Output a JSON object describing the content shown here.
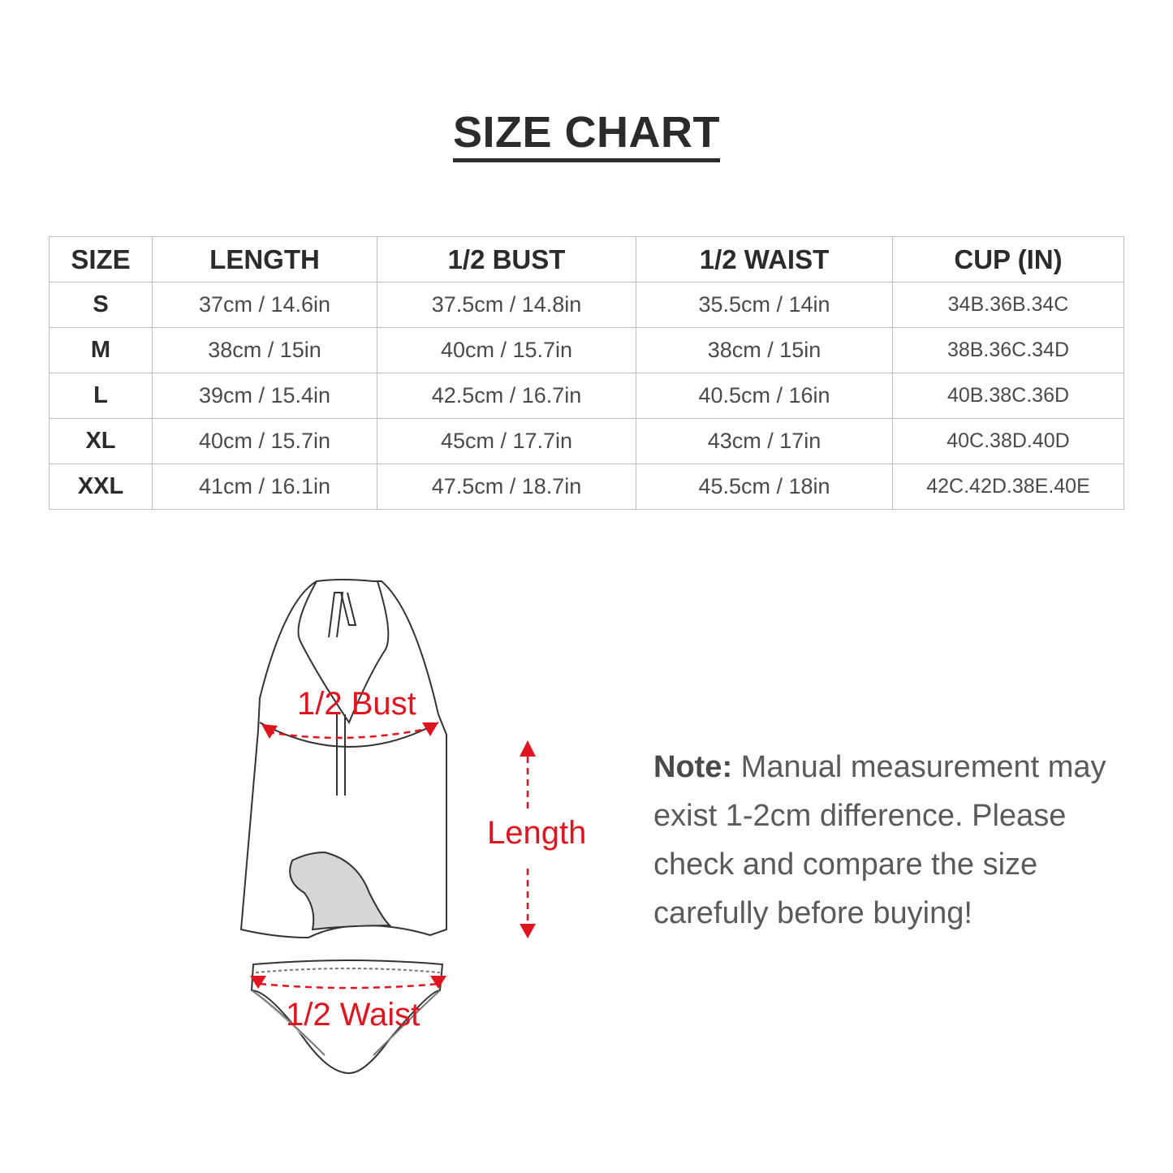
{
  "title": "SIZE CHART",
  "table": {
    "headers": [
      "SIZE",
      "LENGTH",
      "1/2 BUST",
      "1/2 WAIST",
      "CUP (IN)"
    ],
    "rows": [
      [
        "S",
        "37cm / 14.6in",
        "37.5cm / 14.8in",
        "35.5cm / 14in",
        "34B.36B.34C"
      ],
      [
        "M",
        "38cm / 15in",
        "40cm / 15.7in",
        "38cm / 15in",
        "38B.36C.34D"
      ],
      [
        "L",
        "39cm / 15.4in",
        "42.5cm / 16.7in",
        "40.5cm / 16in",
        "40B.38C.36D"
      ],
      [
        "XL",
        "40cm / 15.7in",
        "45cm / 17.7in",
        "43cm / 17in",
        "40C.38D.40D"
      ],
      [
        "XXL",
        "41cm / 16.1in",
        "47.5cm / 18.7in",
        "45.5cm / 18in",
        "42C.42D.38E.40E"
      ]
    ]
  },
  "diagram": {
    "bust_label": "1/2 Bust",
    "waist_label": "1/2 Waist",
    "length_label": "Length",
    "accent": "#e0141e"
  },
  "note": {
    "label": "Note:",
    "text": " Manual measurement may exist 1-2cm difference. Please check and compare the size carefully before buying!"
  }
}
